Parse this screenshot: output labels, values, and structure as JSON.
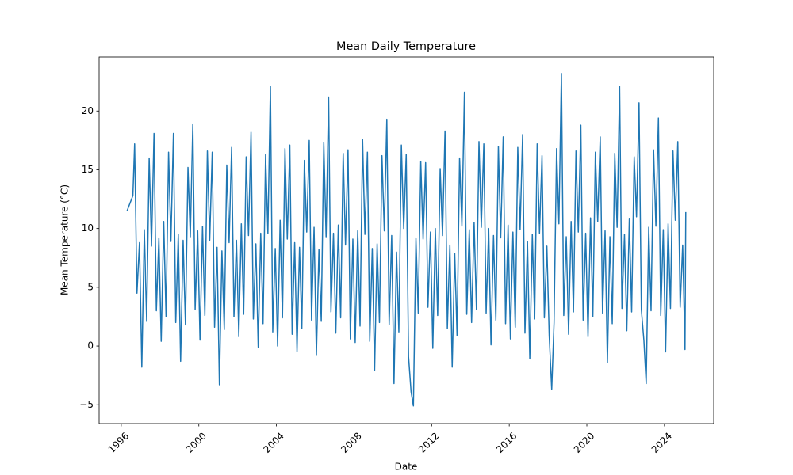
{
  "chart_data": {
    "type": "line",
    "title": "Mean Daily Temperature",
    "x_label": "Date",
    "y_label": "Mean Temperature (°C)",
    "color": "#1f77b4",
    "grid": false,
    "xlim": [
      1994.86,
      2026.54
    ],
    "xticks": [
      1996,
      2000,
      2004,
      2008,
      2012,
      2016,
      2020,
      2024
    ],
    "ylim": [
      -6.6,
      24.6
    ],
    "yticks": [
      {
        "value": -5,
        "label": "−5"
      },
      0,
      5,
      10,
      15,
      20
    ],
    "x": [
      1996.3,
      1996.6,
      1996.69,
      1996.81,
      1996.94,
      1997.06,
      1997.19,
      1997.31,
      1997.44,
      1997.56,
      1997.69,
      1997.81,
      1997.94,
      1998.06,
      1998.19,
      1998.31,
      1998.44,
      1998.56,
      1998.69,
      1998.81,
      1998.94,
      1999.06,
      1999.19,
      1999.31,
      1999.44,
      1999.56,
      1999.69,
      1999.81,
      1999.94,
      2000.06,
      2000.19,
      2000.31,
      2000.44,
      2000.56,
      2000.69,
      2000.81,
      2000.94,
      2001.06,
      2001.19,
      2001.31,
      2001.44,
      2001.56,
      2001.69,
      2001.81,
      2001.94,
      2002.06,
      2002.19,
      2002.31,
      2002.44,
      2002.56,
      2002.69,
      2002.81,
      2002.94,
      2003.06,
      2003.19,
      2003.31,
      2003.44,
      2003.56,
      2003.69,
      2003.81,
      2003.94,
      2004.06,
      2004.19,
      2004.31,
      2004.44,
      2004.56,
      2004.69,
      2004.81,
      2004.94,
      2005.06,
      2005.19,
      2005.31,
      2005.44,
      2005.56,
      2005.69,
      2005.81,
      2005.94,
      2006.06,
      2006.19,
      2006.31,
      2006.44,
      2006.56,
      2006.69,
      2006.81,
      2006.94,
      2007.06,
      2007.19,
      2007.31,
      2007.44,
      2007.56,
      2007.69,
      2007.81,
      2007.94,
      2008.06,
      2008.19,
      2008.31,
      2008.44,
      2008.56,
      2008.69,
      2008.81,
      2008.94,
      2009.06,
      2009.19,
      2009.31,
      2009.44,
      2009.56,
      2009.69,
      2009.81,
      2009.94,
      2010.06,
      2010.19,
      2010.31,
      2010.44,
      2010.56,
      2010.69,
      2010.81,
      2010.94,
      2011.06,
      2011.19,
      2011.31,
      2011.44,
      2011.56,
      2011.69,
      2011.81,
      2011.94,
      2012.06,
      2012.19,
      2012.31,
      2012.44,
      2012.56,
      2012.69,
      2012.81,
      2012.94,
      2013.06,
      2013.19,
      2013.31,
      2013.44,
      2013.56,
      2013.69,
      2013.81,
      2013.94,
      2014.06,
      2014.19,
      2014.31,
      2014.44,
      2014.56,
      2014.69,
      2014.81,
      2014.94,
      2015.06,
      2015.19,
      2015.31,
      2015.44,
      2015.56,
      2015.69,
      2015.81,
      2015.94,
      2016.06,
      2016.19,
      2016.31,
      2016.44,
      2016.56,
      2016.69,
      2016.81,
      2016.94,
      2017.06,
      2017.19,
      2017.31,
      2017.44,
      2017.56,
      2017.69,
      2017.81,
      2017.94,
      2018.06,
      2018.19,
      2018.31,
      2018.44,
      2018.56,
      2018.69,
      2018.81,
      2018.94,
      2019.06,
      2019.19,
      2019.31,
      2019.44,
      2019.56,
      2019.69,
      2019.81,
      2019.94,
      2020.06,
      2020.19,
      2020.31,
      2020.44,
      2020.56,
      2020.69,
      2020.81,
      2020.94,
      2021.06,
      2021.19,
      2021.31,
      2021.44,
      2021.56,
      2021.69,
      2021.81,
      2021.94,
      2022.06,
      2022.19,
      2022.31,
      2022.44,
      2022.56,
      2022.69,
      2022.81,
      2022.94,
      2023.06,
      2023.19,
      2023.31,
      2023.44,
      2023.56,
      2023.69,
      2023.81,
      2023.94,
      2024.06,
      2024.19,
      2024.31,
      2024.44,
      2024.56,
      2024.69,
      2024.81,
      2024.94,
      2025.06,
      2025.1
    ],
    "values": [
      11.5,
      12.8,
      17.2,
      4.5,
      8.8,
      -1.8,
      9.9,
      2.1,
      16.0,
      8.5,
      18.1,
      3.0,
      9.2,
      0.4,
      10.6,
      2.5,
      16.5,
      8.9,
      18.1,
      2.0,
      9.5,
      -1.3,
      9.0,
      1.8,
      15.2,
      9.3,
      18.9,
      3.1,
      9.8,
      0.5,
      10.2,
      2.6,
      16.6,
      9.0,
      16.5,
      1.6,
      8.4,
      -3.3,
      8.1,
      1.4,
      15.4,
      8.8,
      16.9,
      2.5,
      9.0,
      0.8,
      10.4,
      2.7,
      16.1,
      9.4,
      18.2,
      2.3,
      8.7,
      -0.1,
      9.6,
      1.9,
      16.3,
      9.6,
      22.1,
      1.2,
      8.3,
      0.0,
      10.7,
      2.4,
      16.8,
      9.1,
      17.1,
      1.0,
      8.8,
      -0.5,
      8.4,
      1.5,
      15.8,
      9.7,
      17.5,
      2.2,
      10.1,
      -0.8,
      8.2,
      2.1,
      17.3,
      9.3,
      21.2,
      2.9,
      9.6,
      1.1,
      10.3,
      2.4,
      16.4,
      8.6,
      16.7,
      0.6,
      9.1,
      0.3,
      9.8,
      1.7,
      17.6,
      9.5,
      16.5,
      0.4,
      8.3,
      -2.1,
      8.7,
      2.0,
      16.2,
      9.8,
      19.3,
      1.8,
      9.4,
      -3.2,
      8.0,
      1.2,
      17.1,
      10.0,
      16.3,
      -0.9,
      -3.9,
      -5.1,
      9.2,
      2.8,
      15.7,
      9.1,
      15.6,
      3.3,
      9.7,
      -0.2,
      10.0,
      2.6,
      15.1,
      9.4,
      18.3,
      1.5,
      8.6,
      -1.8,
      7.9,
      0.9,
      16.0,
      10.2,
      21.6,
      2.7,
      9.9,
      2.0,
      10.5,
      3.1,
      17.4,
      10.1,
      17.2,
      2.8,
      10.0,
      0.1,
      9.4,
      2.2,
      17.0,
      9.2,
      17.8,
      1.9,
      10.3,
      0.6,
      9.7,
      1.6,
      16.9,
      9.9,
      18.0,
      1.1,
      8.9,
      -1.1,
      9.5,
      2.3,
      17.2,
      9.6,
      16.2,
      2.4,
      8.5,
      0.9,
      -3.7,
      2.0,
      16.8,
      10.4,
      23.2,
      2.6,
      9.3,
      1.0,
      10.6,
      2.9,
      16.6,
      9.7,
      18.8,
      2.2,
      9.6,
      0.8,
      10.9,
      2.5,
      16.5,
      10.6,
      17.8,
      2.8,
      9.8,
      -1.4,
      9.3,
      1.9,
      16.4,
      10.1,
      22.1,
      3.2,
      9.5,
      1.3,
      10.8,
      2.9,
      16.1,
      11.0,
      20.7,
      3.1,
      0.5,
      -3.2,
      10.1,
      3.0,
      16.7,
      10.2,
      19.4,
      2.6,
      9.9,
      -0.5,
      10.4,
      3.2,
      16.6,
      10.7,
      17.4,
      3.3,
      8.6,
      -0.3,
      11.4
    ]
  }
}
